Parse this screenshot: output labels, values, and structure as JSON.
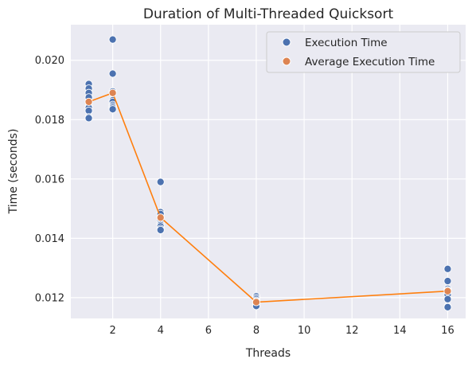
{
  "chart_data": {
    "type": "scatter",
    "title": "Duration of Multi-Threaded Quicksort",
    "xlabel": "Threads",
    "ylabel": "Time (seconds)",
    "xlim": [
      0.25,
      16.75
    ],
    "ylim": [
      0.0113,
      0.0212
    ],
    "xticks": [
      2,
      4,
      6,
      8,
      10,
      12,
      14,
      16
    ],
    "yticks": [
      0.012,
      0.014,
      0.016,
      0.018,
      0.02
    ],
    "ytick_labels": [
      "0.012",
      "0.014",
      "0.016",
      "0.018",
      "0.020"
    ],
    "grid": true,
    "legend_position": "top-right",
    "series": [
      {
        "name": "Execution Time",
        "kind": "scatter",
        "color": "#4c72b0",
        "points": [
          [
            1,
            0.0192
          ],
          [
            1,
            0.01905
          ],
          [
            1,
            0.0189
          ],
          [
            1,
            0.01875
          ],
          [
            1,
            0.0186
          ],
          [
            1,
            0.01845
          ],
          [
            1,
            0.0184
          ],
          [
            1,
            0.0183
          ],
          [
            1,
            0.01808
          ],
          [
            1,
            0.01805
          ],
          [
            2,
            0.0207
          ],
          [
            2,
            0.01955
          ],
          [
            2,
            0.01895
          ],
          [
            2,
            0.0189
          ],
          [
            2,
            0.01865
          ],
          [
            2,
            0.0186
          ],
          [
            2,
            0.0185
          ],
          [
            2,
            0.01845
          ],
          [
            2,
            0.0184
          ],
          [
            2,
            0.01835
          ],
          [
            4,
            0.0159
          ],
          [
            4,
            0.01488
          ],
          [
            4,
            0.01482
          ],
          [
            4,
            0.0147
          ],
          [
            4,
            0.0146
          ],
          [
            4,
            0.0145
          ],
          [
            4,
            0.01445
          ],
          [
            4,
            0.0144
          ],
          [
            4,
            0.01432
          ],
          [
            4,
            0.01428
          ],
          [
            8,
            0.01205
          ],
          [
            8,
            0.012
          ],
          [
            8,
            0.01195
          ],
          [
            8,
            0.0119
          ],
          [
            8,
            0.01187
          ],
          [
            8,
            0.01183
          ],
          [
            8,
            0.0118
          ],
          [
            8,
            0.01178
          ],
          [
            8,
            0.01175
          ],
          [
            8,
            0.01172
          ],
          [
            16,
            0.01297
          ],
          [
            16,
            0.01256
          ],
          [
            16,
            0.0123
          ],
          [
            16,
            0.01225
          ],
          [
            16,
            0.01222
          ],
          [
            16,
            0.01215
          ],
          [
            16,
            0.0121
          ],
          [
            16,
            0.01195
          ],
          [
            16,
            0.0117
          ],
          [
            16,
            0.01168
          ]
        ]
      },
      {
        "name": "Average Execution Time",
        "kind": "scatter",
        "color": "#dd8452",
        "points": [
          [
            1,
            0.0186
          ],
          [
            2,
            0.0189
          ],
          [
            4,
            0.0147
          ],
          [
            8,
            0.01185
          ],
          [
            16,
            0.01222
          ]
        ]
      },
      {
        "kind": "line",
        "color": "#ff7f0e",
        "points": [
          [
            1,
            0.0186
          ],
          [
            2,
            0.0189
          ],
          [
            4,
            0.0147
          ],
          [
            8,
            0.01185
          ],
          [
            16,
            0.01222
          ]
        ]
      }
    ]
  }
}
